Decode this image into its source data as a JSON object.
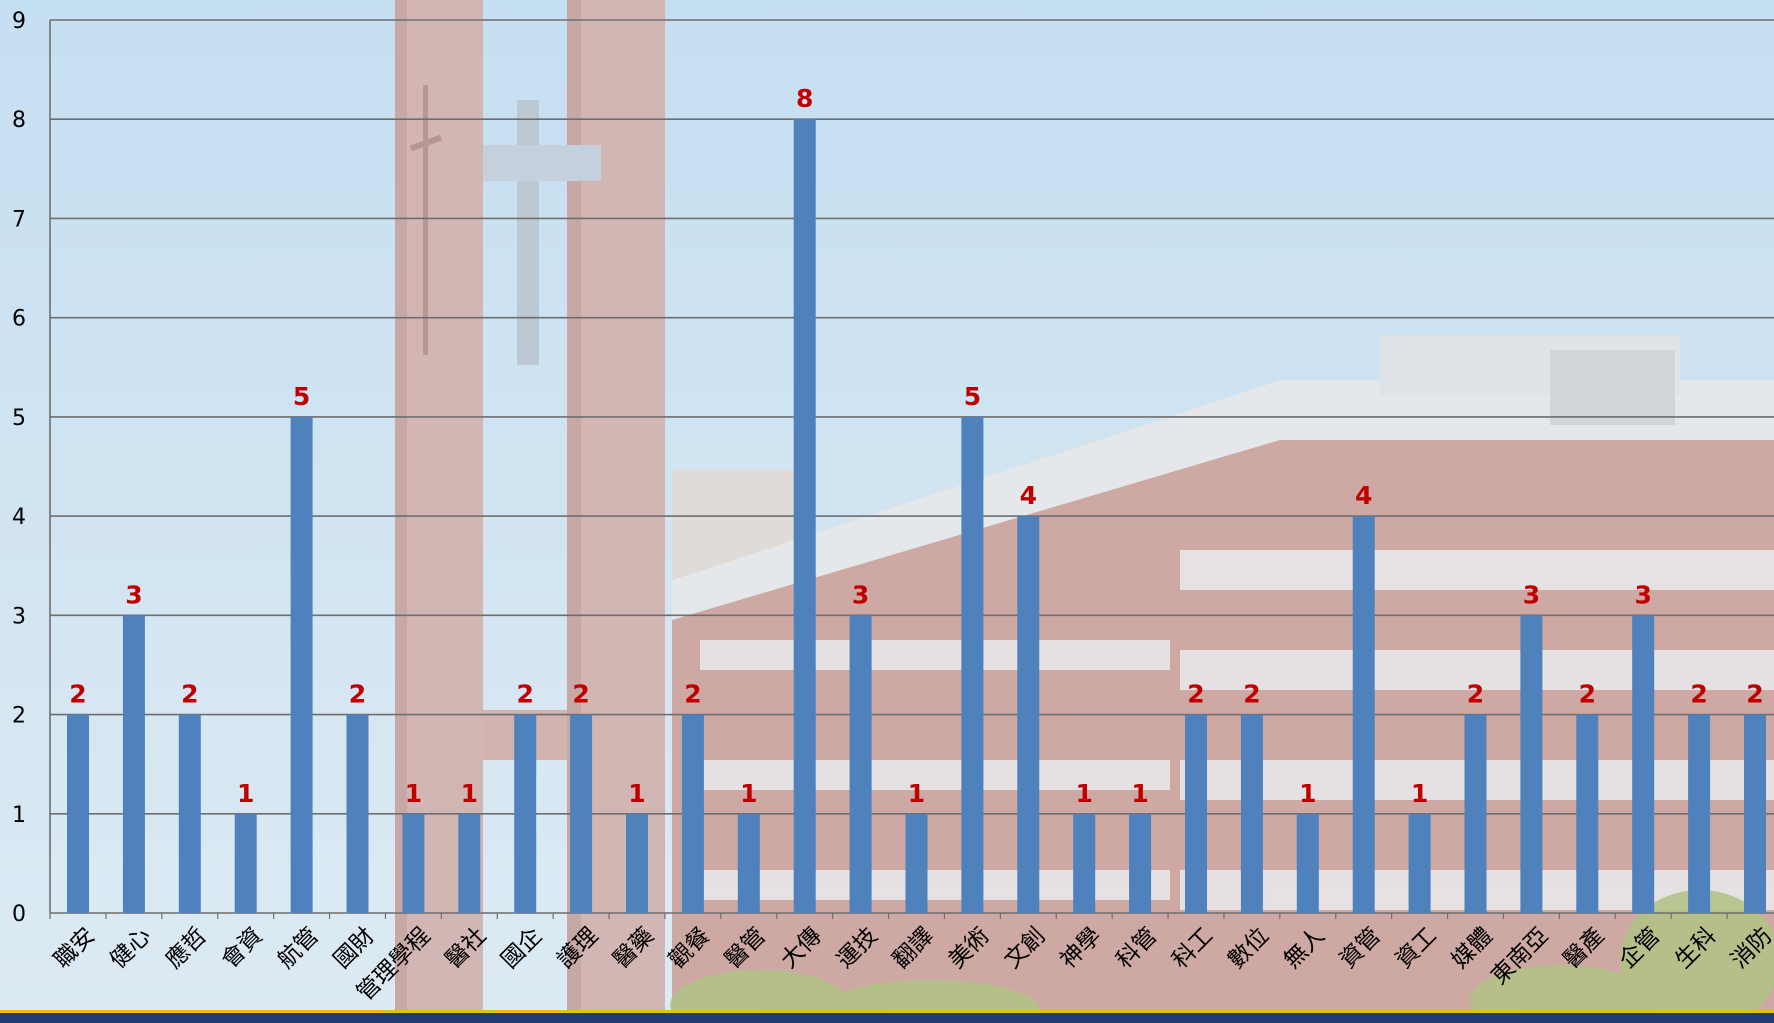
{
  "colors": {
    "bar": "#4f81bd",
    "data_label": "#c00000",
    "grid": "#6e6e6e",
    "axis_text": "#000000",
    "bottom_band": "#1f3b70",
    "bottom_accent": "#e6c200"
  },
  "chart_data": {
    "type": "bar",
    "title": "",
    "xlabel": "",
    "ylabel": "",
    "ylim": [
      0,
      9
    ],
    "yticks": [
      0,
      1,
      2,
      3,
      4,
      5,
      6,
      7,
      8,
      9
    ],
    "grid": true,
    "legend": "none",
    "data_labels": true,
    "categories": [
      "職安",
      "健心",
      "應哲",
      "會資",
      "航管",
      "國財",
      "管理學程",
      "醫社",
      "國企",
      "護理",
      "醫藥",
      "觀餐",
      "醫管",
      "大傳",
      "運技",
      "翻譯",
      "美術",
      "文創",
      "神學",
      "科管",
      "科工",
      "數位",
      "無人",
      "資管",
      "資工",
      "媒體",
      "東南亞",
      "醫產",
      "企管",
      "生科",
      "消防"
    ],
    "values": [
      2,
      3,
      2,
      1,
      5,
      2,
      1,
      1,
      2,
      2,
      1,
      2,
      1,
      8,
      3,
      1,
      5,
      4,
      1,
      1,
      2,
      2,
      1,
      4,
      1,
      2,
      3,
      2,
      3,
      2,
      2
    ]
  }
}
